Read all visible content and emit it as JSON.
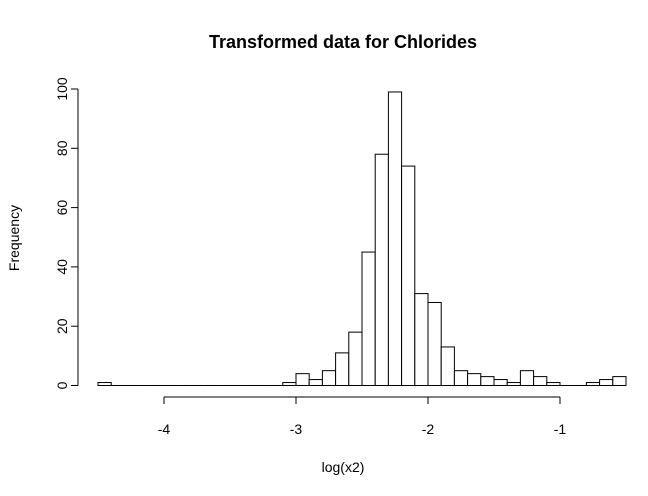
{
  "chart_data": {
    "type": "bar",
    "title": "Transformed data for Chlorides",
    "xlabel": "log(x2)",
    "ylabel": "Frequency",
    "bin_width": 0.1,
    "bin_start": -4.5,
    "xlim": [
      -4.5,
      -0.8
    ],
    "ylim": [
      0,
      100
    ],
    "x_ticks": [
      -4,
      -3,
      -2,
      -1
    ],
    "x_tick_labels": [
      "-4",
      "-3",
      "-2",
      "-1"
    ],
    "y_ticks": [
      0,
      20,
      40,
      60,
      80,
      100
    ],
    "y_tick_labels": [
      "0",
      "20",
      "40",
      "60",
      "80",
      "100"
    ],
    "frequencies": [
      1,
      0,
      0,
      0,
      0,
      0,
      0,
      0,
      0,
      0,
      0,
      0,
      0,
      0,
      1,
      4,
      2,
      5,
      11,
      18,
      45,
      78,
      99,
      74,
      31,
      28,
      13,
      5,
      4,
      3,
      2,
      1,
      5,
      3,
      1,
      0,
      0,
      1,
      2,
      3
    ],
    "grid": false,
    "bar_fill": "#ffffff",
    "bar_stroke": "#000000"
  }
}
